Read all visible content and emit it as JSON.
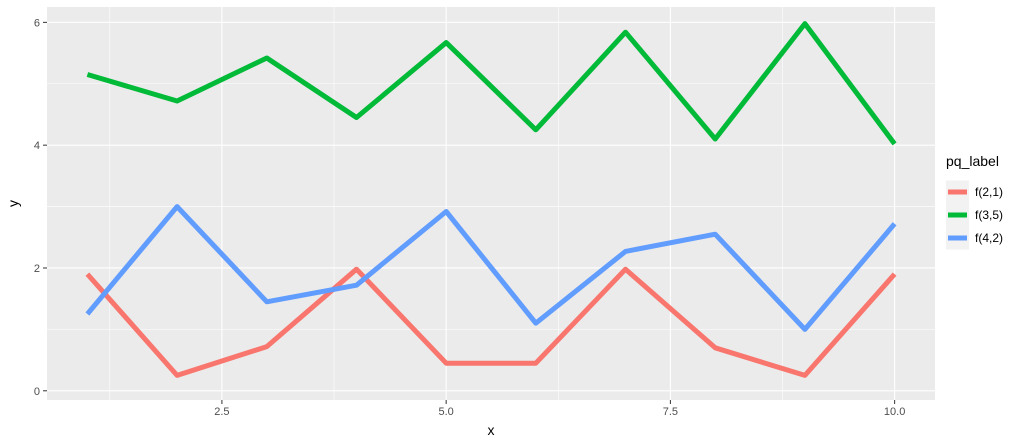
{
  "chart_data": {
    "type": "line",
    "xlabel": "x",
    "ylabel": "y",
    "xlim": [
      0.55,
      10.45
    ],
    "ylim": [
      -0.15,
      6.25
    ],
    "x_ticks": [
      2.5,
      5.0,
      7.5,
      10.0
    ],
    "x_tick_labels": [
      "2.5",
      "5.0",
      "7.5",
      "10.0"
    ],
    "y_ticks": [
      0,
      2,
      4,
      6
    ],
    "y_tick_labels": [
      "0",
      "2",
      "4",
      "6"
    ],
    "grid": true,
    "legend": {
      "title": "pq_label",
      "position": "right"
    },
    "x": [
      1,
      2,
      3,
      4,
      5,
      6,
      7,
      8,
      9,
      10
    ],
    "series": [
      {
        "name": "f(2,1)",
        "color": "#F8766D",
        "values": [
          1.9,
          0.25,
          0.72,
          1.98,
          0.45,
          0.45,
          1.98,
          0.7,
          0.25,
          1.9
        ]
      },
      {
        "name": "f(3,5)",
        "color": "#00BA38",
        "values": [
          5.15,
          4.72,
          5.42,
          4.45,
          5.67,
          4.25,
          5.84,
          4.1,
          5.98,
          4.02
        ]
      },
      {
        "name": "f(4,2)",
        "color": "#619CFF",
        "values": [
          1.25,
          3.0,
          1.45,
          1.72,
          2.92,
          1.1,
          2.27,
          2.55,
          1.0,
          2.72
        ]
      }
    ]
  }
}
